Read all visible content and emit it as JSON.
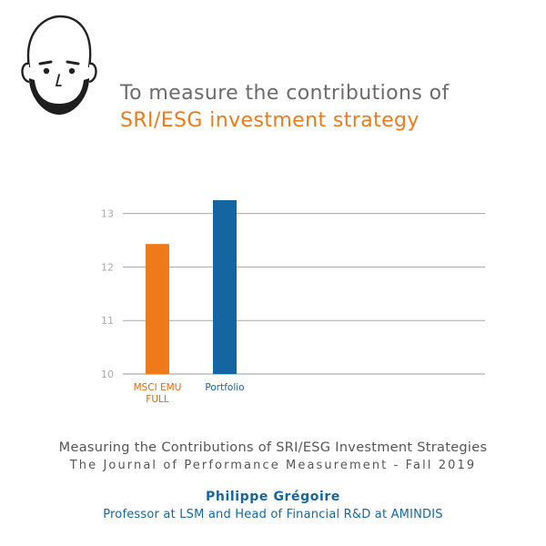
{
  "header": {
    "title_line1": "To measure the contributions of",
    "title_line2": "SRI/ESG investment strategy"
  },
  "chart_data": {
    "type": "bar",
    "categories": [
      "MSCI EMU FULL",
      "Portfolio"
    ],
    "category_lines": [
      [
        "MSCI EMU",
        "FULL"
      ],
      [
        "Portfolio"
      ]
    ],
    "values": [
      12.43,
      13.25
    ],
    "bar_colors": [
      "#f07a1a",
      "#1566a0"
    ],
    "label_colors": [
      "#e06a10",
      "#1566a0"
    ],
    "yticks": [
      10,
      11,
      12,
      13
    ],
    "ylim": [
      10,
      13.3
    ],
    "grid": true,
    "title": "",
    "xlabel": "",
    "ylabel": ""
  },
  "citation": {
    "paper": "Measuring the Contributions of SRI/ESG Investment Strategies",
    "journal": "The Journal of Performance Measurement - Fall 2019"
  },
  "author": {
    "name": "Philippe Grégoire",
    "role": "Professor at LSM and Head of Financial R&D at AMINDIS"
  },
  "colors": {
    "accent_orange": "#f07a1a",
    "accent_blue": "#1566a0",
    "title_gray": "#6b6b6b"
  },
  "icons": {
    "avatar": "bald-man-avatar-icon"
  }
}
